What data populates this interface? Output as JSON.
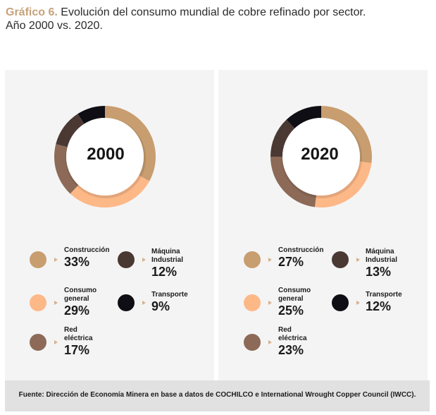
{
  "header": {
    "label": "Gráfico 6.",
    "title": "Evolución del consumo mundial de cobre refinado por sector.",
    "subtitle": "Año 2000 vs. 2020."
  },
  "chart_data": [
    {
      "type": "pie",
      "title": "2000",
      "categories": [
        "Construcción",
        "Consumo general",
        "Red eléctrica",
        "Máquina Industrial",
        "Transporte"
      ],
      "values": [
        33,
        29,
        17,
        12,
        9
      ],
      "value_labels": [
        "33%",
        "29%",
        "17%",
        "12%",
        "9%"
      ]
    },
    {
      "type": "pie",
      "title": "2020",
      "categories": [
        "Construcción",
        "Consumo general",
        "Red eléctrica",
        "Máquina Industrial",
        "Transporte"
      ],
      "values": [
        27,
        25,
        23,
        13,
        12
      ],
      "value_labels": [
        "27%",
        "25%",
        "23%",
        "13%",
        "12%"
      ]
    }
  ],
  "legend": {
    "construccion": "Construcción",
    "consumo_l1": "Consumo",
    "consumo_l2": "general",
    "red_l1": "Red",
    "red_l2": "eléctrica",
    "maquina_l1": "Máquina",
    "maquina_l2": "Industrial",
    "transporte": "Transporte"
  },
  "colors": {
    "construccion": "#c89d6f",
    "consumo": "#fdb888",
    "red": "#8c6a57",
    "maquina": "#4a3833",
    "transporte": "#0f0e14"
  },
  "footer": {
    "source": "Fuente: Dirección de Economía Minera en base a datos de COCHILCO e International Wrought Copper Council (IWCC)."
  }
}
